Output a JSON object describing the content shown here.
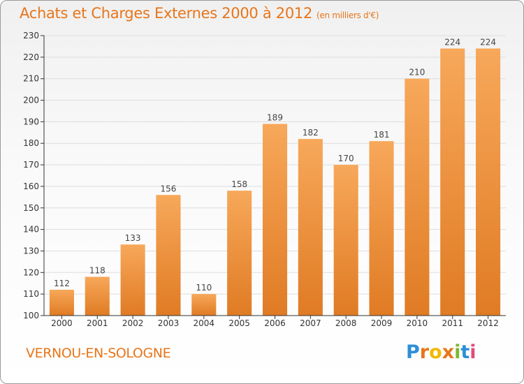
{
  "header": {
    "title": "Achats et Charges Externes 2000 à 2012",
    "subtitle": "(en milliers d'€)"
  },
  "footer": {
    "place": "VERNOU-EN-SOLOGNE",
    "logo": [
      "P",
      "r",
      "o",
      "x",
      "i",
      "t",
      "i"
    ],
    "logo_colors": [
      "#2e8fd6",
      "#e8751a",
      "#f2b900",
      "#e8751a",
      "#7cb82f",
      "#2e8fd6",
      "#e24a7a"
    ]
  },
  "colors": {
    "bar_light": "#f7a85a",
    "bar_dark": "#e07b24",
    "axis": "#333333",
    "grid": "#dddddd",
    "accent": "#e8751a"
  },
  "chart_data": {
    "type": "bar",
    "title": "Achats et Charges Externes 2000 à 2012",
    "xlabel": "",
    "ylabel": "",
    "ylim": [
      100,
      230
    ],
    "yticks": [
      100,
      110,
      120,
      130,
      140,
      150,
      160,
      170,
      180,
      190,
      200,
      210,
      220,
      230
    ],
    "grid": true,
    "categories": [
      "2000",
      "2001",
      "2002",
      "2003",
      "2004",
      "2005",
      "2006",
      "2007",
      "2008",
      "2009",
      "2010",
      "2011",
      "2012"
    ],
    "values": [
      112,
      118,
      133,
      156,
      110,
      158,
      189,
      182,
      170,
      181,
      210,
      224,
      224
    ]
  }
}
